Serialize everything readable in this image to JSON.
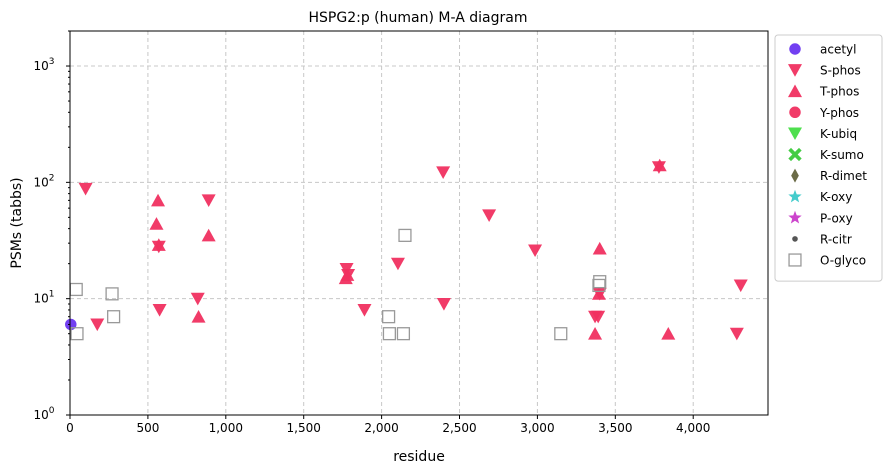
{
  "chart_data": {
    "type": "scatter",
    "title": "HSPG2:p (human) M-A diagram",
    "xlabel": "residue",
    "ylabel": "PSMs (tabbs)",
    "xlim": [
      0,
      4480
    ],
    "ylim": [
      1,
      2000
    ],
    "yscale": "log",
    "grid": true,
    "legend_position": "outside-top-right",
    "x_ticks": [
      {
        "value": 0,
        "label": "0"
      },
      {
        "value": 500,
        "label": "500"
      },
      {
        "value": 1000,
        "label": "1,000"
      },
      {
        "value": 1500,
        "label": "1,500"
      },
      {
        "value": 2000,
        "label": "2,000"
      },
      {
        "value": 2500,
        "label": "2,500"
      },
      {
        "value": 3000,
        "label": "3,000"
      },
      {
        "value": 3500,
        "label": "3,500"
      },
      {
        "value": 4000,
        "label": "4,000"
      }
    ],
    "y_ticks": [
      {
        "value": 1,
        "base": "10",
        "exp": "0"
      },
      {
        "value": 10,
        "base": "10",
        "exp": "1"
      },
      {
        "value": 100,
        "base": "10",
        "exp": "2"
      },
      {
        "value": 1000,
        "base": "10",
        "exp": "3"
      }
    ],
    "series": [
      {
        "name": "acetyl",
        "marker": "circle",
        "color": "#6a35f0",
        "points": [
          {
            "x": 5,
            "y": 6
          }
        ]
      },
      {
        "name": "S-phos",
        "marker": "triangle-down",
        "color": "#f03060",
        "points": [
          {
            "x": 100,
            "y": 88
          },
          {
            "x": 175,
            "y": 6
          },
          {
            "x": 570,
            "y": 28
          },
          {
            "x": 575,
            "y": 8
          },
          {
            "x": 820,
            "y": 10
          },
          {
            "x": 890,
            "y": 70
          },
          {
            "x": 1775,
            "y": 18
          },
          {
            "x": 1785,
            "y": 16
          },
          {
            "x": 1890,
            "y": 8
          },
          {
            "x": 2105,
            "y": 20
          },
          {
            "x": 2395,
            "y": 122
          },
          {
            "x": 2400,
            "y": 9
          },
          {
            "x": 2690,
            "y": 52
          },
          {
            "x": 2985,
            "y": 26
          },
          {
            "x": 3370,
            "y": 7
          },
          {
            "x": 3390,
            "y": 7
          },
          {
            "x": 3400,
            "y": 11
          },
          {
            "x": 3780,
            "y": 135
          },
          {
            "x": 4280,
            "y": 5
          },
          {
            "x": 4305,
            "y": 13
          }
        ]
      },
      {
        "name": "T-phos",
        "marker": "triangle-up",
        "color": "#f03060",
        "points": [
          {
            "x": 555,
            "y": 44
          },
          {
            "x": 565,
            "y": 70
          },
          {
            "x": 570,
            "y": 29
          },
          {
            "x": 825,
            "y": 7
          },
          {
            "x": 890,
            "y": 35
          },
          {
            "x": 1770,
            "y": 15
          },
          {
            "x": 1780,
            "y": 16
          },
          {
            "x": 3370,
            "y": 5
          },
          {
            "x": 3395,
            "y": 11
          },
          {
            "x": 3400,
            "y": 27
          },
          {
            "x": 3785,
            "y": 140
          },
          {
            "x": 3840,
            "y": 5
          }
        ]
      },
      {
        "name": "Y-phos",
        "marker": "circle",
        "color": "#f03060",
        "points": []
      },
      {
        "name": "K-ubiq",
        "marker": "triangle-down",
        "color": "#44dd44",
        "points": []
      },
      {
        "name": "K-sumo",
        "marker": "x-filled",
        "color": "#44cc44",
        "points": []
      },
      {
        "name": "R-dimet",
        "marker": "diamond-thin",
        "color": "#6b6b47",
        "points": []
      },
      {
        "name": "K-oxy",
        "marker": "star",
        "color": "#44cccc",
        "points": []
      },
      {
        "name": "P-oxy",
        "marker": "star",
        "color": "#cc44cc",
        "points": []
      },
      {
        "name": "R-citr",
        "marker": "dot",
        "color": "#555555",
        "points": []
      },
      {
        "name": "O-glyco",
        "marker": "square-open",
        "color": "#999999",
        "points": [
          {
            "x": 40,
            "y": 12
          },
          {
            "x": 45,
            "y": 5
          },
          {
            "x": 270,
            "y": 11
          },
          {
            "x": 280,
            "y": 7
          },
          {
            "x": 2045,
            "y": 7
          },
          {
            "x": 2050,
            "y": 5
          },
          {
            "x": 2140,
            "y": 5
          },
          {
            "x": 2150,
            "y": 35
          },
          {
            "x": 3150,
            "y": 5
          },
          {
            "x": 3395,
            "y": 13
          },
          {
            "x": 3400,
            "y": 14
          }
        ]
      }
    ]
  }
}
